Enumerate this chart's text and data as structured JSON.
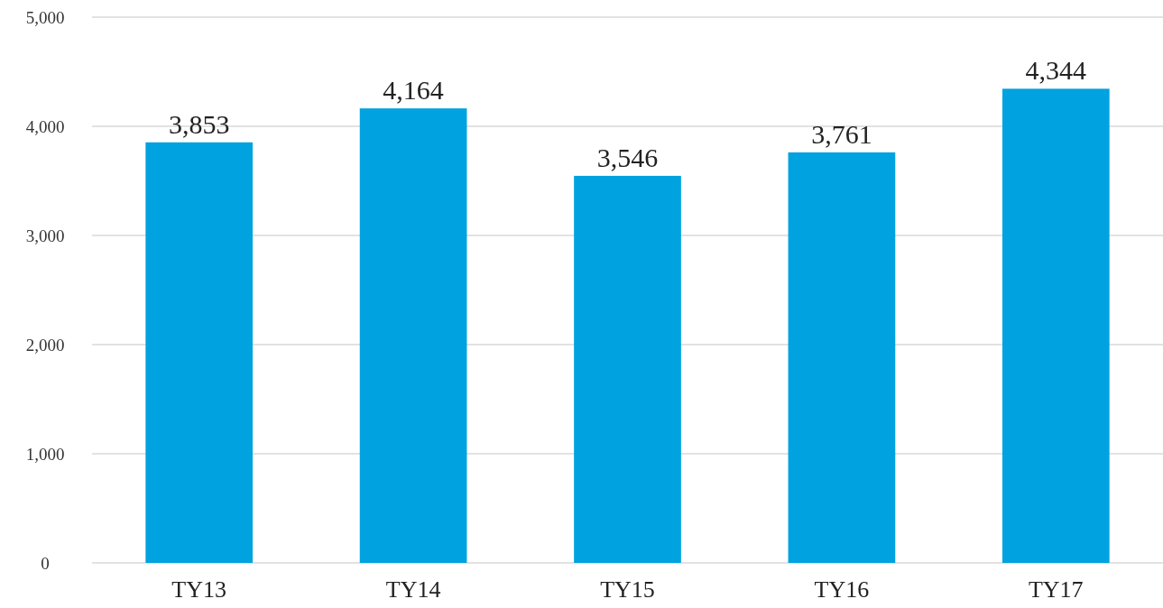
{
  "chart_data": {
    "type": "bar",
    "categories": [
      "TY13",
      "TY14",
      "TY15",
      "TY16",
      "TY17"
    ],
    "values": [
      3853,
      4164,
      3546,
      3761,
      4344
    ],
    "color": "#00a2df",
    "ylim": [
      0,
      5000
    ],
    "yticks": [
      {
        "value": 0,
        "label": "0"
      },
      {
        "value": 1000,
        "label": "1,000"
      },
      {
        "value": 2000,
        "label": "2,000"
      },
      {
        "value": 3000,
        "label": "3,000"
      },
      {
        "value": 4000,
        "label": "4,000"
      },
      {
        "value": 5000,
        "label": "5,000"
      }
    ],
    "grid": "y",
    "value_labels": [
      "3,853",
      "4,164",
      "3,546",
      "3,761",
      "4,344"
    ]
  }
}
